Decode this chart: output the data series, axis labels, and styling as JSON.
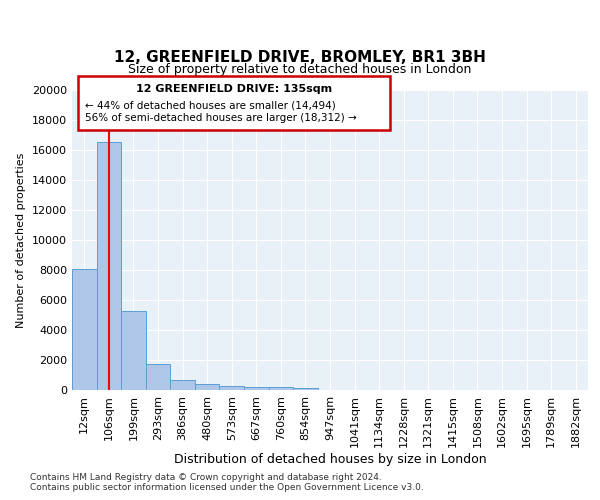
{
  "title_line1": "12, GREENFIELD DRIVE, BROMLEY, BR1 3BH",
  "title_line2": "Size of property relative to detached houses in London",
  "xlabel": "Distribution of detached houses by size in London",
  "ylabel": "Number of detached properties",
  "bar_values": [
    8100,
    16500,
    5300,
    1750,
    700,
    380,
    280,
    220,
    190,
    160,
    0,
    0,
    0,
    0,
    0,
    0,
    0,
    0,
    0,
    0,
    0
  ],
  "bar_labels": [
    "12sqm",
    "106sqm",
    "199sqm",
    "293sqm",
    "386sqm",
    "480sqm",
    "573sqm",
    "667sqm",
    "760sqm",
    "854sqm",
    "947sqm",
    "1041sqm",
    "1134sqm",
    "1228sqm",
    "1321sqm",
    "1415sqm",
    "1508sqm",
    "1602sqm",
    "1695sqm",
    "1789sqm",
    "1882sqm"
  ],
  "bar_color": "#aec6e8",
  "bar_edge_color": "#5a9fd4",
  "red_line_x": 1,
  "ylim": [
    0,
    20000
  ],
  "yticks": [
    0,
    2000,
    4000,
    6000,
    8000,
    10000,
    12000,
    14000,
    16000,
    18000,
    20000
  ],
  "annotation_title": "12 GREENFIELD DRIVE: 135sqm",
  "annotation_line1": "← 44% of detached houses are smaller (14,494)",
  "annotation_line2": "56% of semi-detached houses are larger (18,312) →",
  "annotation_box_color": "#cc0000",
  "footer_line1": "Contains HM Land Registry data © Crown copyright and database right 2024.",
  "footer_line2": "Contains public sector information licensed under the Open Government Licence v3.0.",
  "background_color": "#e8f0f8",
  "plot_bg_color": "#e8f0f8"
}
